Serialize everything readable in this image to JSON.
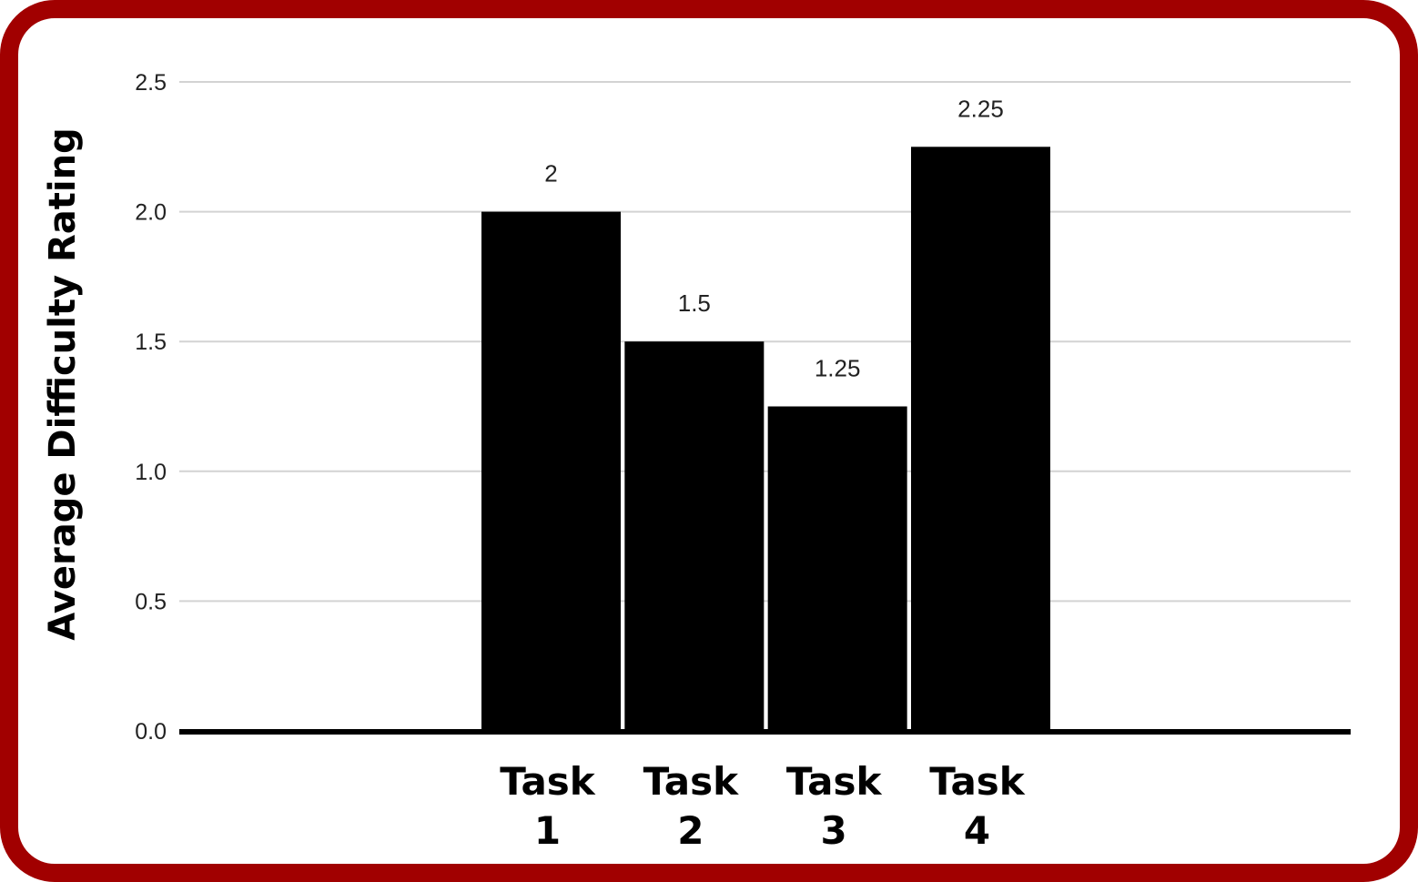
{
  "chart_data": {
    "type": "bar",
    "categories": [
      [
        "Task",
        "1"
      ],
      [
        "Task",
        "2"
      ],
      [
        "Task",
        "3"
      ],
      [
        "Task",
        "4"
      ]
    ],
    "values": [
      2,
      1.5,
      1.25,
      2.25
    ],
    "value_labels": [
      "2",
      "1.5",
      "1.25",
      "2.25"
    ],
    "ylabel": "Average Difficulty Rating",
    "ylim": [
      0,
      2.5
    ],
    "yticks": [
      "0.0",
      "0.5",
      "1.0",
      "1.5",
      "2.0",
      "2.5"
    ],
    "grid": true,
    "colors": {
      "bar": "#000000",
      "grid": "#d3d3d3",
      "baseline": "#000000",
      "frame": "#a10000"
    }
  }
}
